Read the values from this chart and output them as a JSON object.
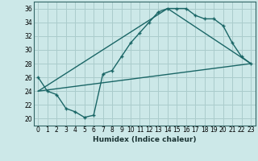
{
  "xlabel": "Humidex (Indice chaleur)",
  "background_color": "#cce8e8",
  "grid_color": "#aacccc",
  "line_color": "#1a6666",
  "xlim": [
    -0.5,
    23.5
  ],
  "ylim": [
    19,
    37
  ],
  "yticks": [
    20,
    22,
    24,
    26,
    28,
    30,
    32,
    34,
    36
  ],
  "xticks": [
    0,
    1,
    2,
    3,
    4,
    5,
    6,
    7,
    8,
    9,
    10,
    11,
    12,
    13,
    14,
    15,
    16,
    17,
    18,
    19,
    20,
    21,
    22,
    23
  ],
  "line1_x": [
    0,
    1,
    2,
    3,
    4,
    5,
    6,
    7,
    8,
    9,
    10,
    11,
    12,
    13,
    14,
    15,
    16,
    17,
    18,
    19,
    20,
    21,
    22,
    23
  ],
  "line1_y": [
    26,
    24,
    23.5,
    21.5,
    21,
    20.2,
    20.5,
    26.5,
    27,
    29,
    31,
    32.5,
    34,
    35.5,
    36,
    36,
    36,
    35,
    34.5,
    34.5,
    33.5,
    31,
    29,
    28
  ],
  "line2_x": [
    0,
    23
  ],
  "line2_y": [
    24,
    28
  ],
  "line3_x": [
    0,
    14,
    23
  ],
  "line3_y": [
    24,
    36,
    28
  ]
}
